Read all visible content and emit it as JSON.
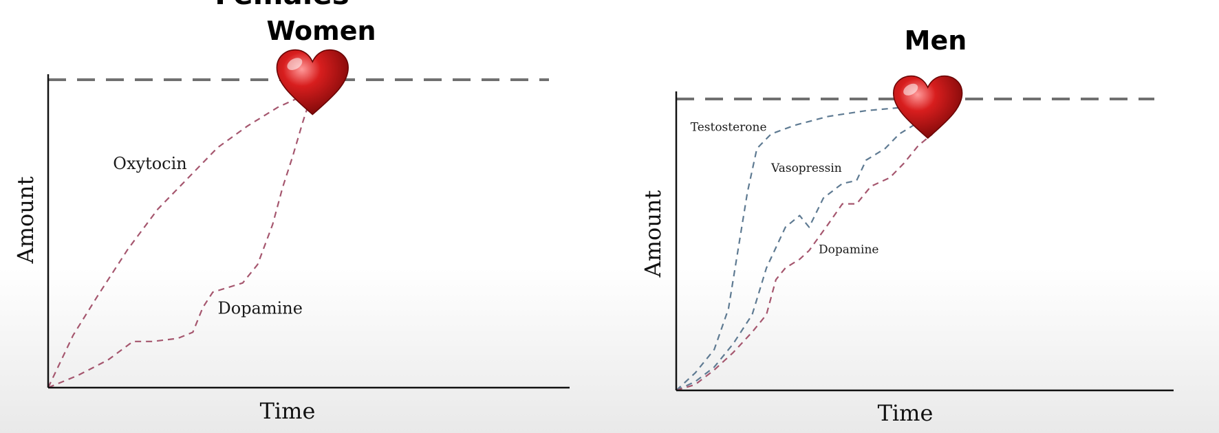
{
  "header": {
    "cut_title": "Females"
  },
  "chart_data": [
    {
      "type": "line",
      "title": "Women",
      "xlabel": "Time",
      "ylabel": "Amount",
      "xlim": [
        0,
        100
      ],
      "ylim": [
        0,
        100
      ],
      "threshold_y": 100,
      "threshold_style": "dashed",
      "heart_at": {
        "x": 53,
        "y": 98
      },
      "series": [
        {
          "name": "Oxytocin",
          "color": "#a5566e",
          "label_at": {
            "x": 13,
            "y": 71
          },
          "points": [
            [
              0,
              0
            ],
            [
              5,
              17
            ],
            [
              10,
              30
            ],
            [
              16,
              45
            ],
            [
              22,
              58
            ],
            [
              28,
              68
            ],
            [
              34,
              78
            ],
            [
              40,
              85
            ],
            [
              46,
              91
            ],
            [
              50,
              94
            ],
            [
              53,
              96
            ]
          ]
        },
        {
          "name": "Dopamine",
          "color": "#a5566e",
          "label_at": {
            "x": 34,
            "y": 24
          },
          "points": [
            [
              0,
              0
            ],
            [
              6,
              4
            ],
            [
              12,
              9
            ],
            [
              17,
              15
            ],
            [
              21,
              15
            ],
            [
              26,
              16
            ],
            [
              29,
              18
            ],
            [
              31,
              26
            ],
            [
              33,
              31
            ],
            [
              39,
              34
            ],
            [
              42,
              40
            ],
            [
              45,
              53
            ],
            [
              47,
              65
            ],
            [
              49,
              75
            ],
            [
              51,
              86
            ],
            [
              52,
              91
            ],
            [
              53,
              96
            ]
          ]
        }
      ]
    },
    {
      "type": "line",
      "title": "Men",
      "xlabel": "Time",
      "ylabel": "Amount",
      "xlim": [
        0,
        100
      ],
      "ylim": [
        0,
        100
      ],
      "threshold_y": 100,
      "threshold_style": "dashed",
      "heart_at": {
        "x": 53,
        "y": 96
      },
      "series": [
        {
          "name": "Testosterone",
          "color": "#5e7a92",
          "label_at": {
            "x": 3,
            "y": 89
          },
          "points": [
            [
              0,
              0
            ],
            [
              4,
              6
            ],
            [
              8,
              14
            ],
            [
              11,
              28
            ],
            [
              13,
              48
            ],
            [
              15,
              68
            ],
            [
              17,
              83
            ],
            [
              20,
              88
            ],
            [
              25,
              91
            ],
            [
              32,
              94
            ],
            [
              40,
              96
            ],
            [
              47,
              97
            ]
          ]
        },
        {
          "name": "Vasopressin",
          "color": "#5e7a92",
          "label_at": {
            "x": 20,
            "y": 75
          },
          "points": [
            [
              0,
              0
            ],
            [
              4,
              3
            ],
            [
              8,
              8
            ],
            [
              12,
              16
            ],
            [
              16,
              26
            ],
            [
              19,
              42
            ],
            [
              23,
              56
            ],
            [
              26,
              60
            ],
            [
              28,
              56
            ],
            [
              31,
              66
            ],
            [
              35,
              71
            ],
            [
              38,
              72
            ],
            [
              40,
              79
            ],
            [
              44,
              83
            ],
            [
              47,
              88
            ],
            [
              50,
              91
            ],
            [
              53,
              93
            ]
          ]
        },
        {
          "name": "Dopamine",
          "color": "#a5566e",
          "label_at": {
            "x": 30,
            "y": 47
          },
          "points": [
            [
              0,
              0
            ],
            [
              4,
              2
            ],
            [
              8,
              7
            ],
            [
              12,
              13
            ],
            [
              16,
              20
            ],
            [
              19,
              26
            ],
            [
              21,
              38
            ],
            [
              23,
              42
            ],
            [
              26,
              45
            ],
            [
              28,
              48
            ],
            [
              32,
              57
            ],
            [
              35,
              64
            ],
            [
              38,
              64
            ],
            [
              41,
              70
            ],
            [
              45,
              73
            ],
            [
              48,
              78
            ],
            [
              51,
              84
            ],
            [
              54,
              88
            ]
          ]
        }
      ]
    }
  ]
}
